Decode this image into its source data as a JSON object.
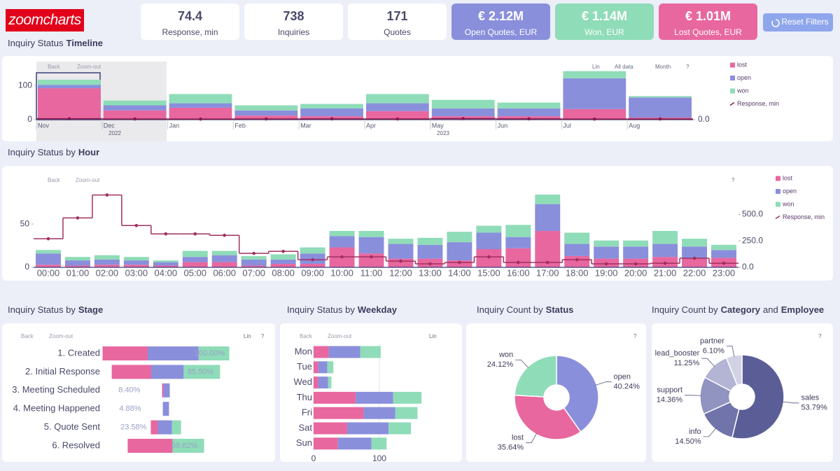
{
  "logo": "zoomcharts",
  "kpis": [
    {
      "value": "74.4",
      "label": "Response, min",
      "color": "#ffffff"
    },
    {
      "value": "738",
      "label": "Inquiries",
      "color": "#ffffff"
    },
    {
      "value": "171",
      "label": "Quotes",
      "color": "#ffffff"
    },
    {
      "value": "€ 2.12M",
      "label": "Open Quotes, EUR",
      "color": "#8a8fdc"
    },
    {
      "value": "€ 1.14M",
      "label": "Won, EUR",
      "color": "#8fdcb8"
    },
    {
      "value": "€ 1.01M",
      "label": "Lost Quotes, EUR",
      "color": "#e8679f"
    }
  ],
  "reset_button": "Reset Filters",
  "chart_data": [
    {
      "type": "bar",
      "title_parts": [
        {
          "text": "Inquiry Status",
          "bold": false
        },
        {
          "text": "Timeline",
          "bold": true
        }
      ],
      "toolbar_left": [
        "Back",
        "Zoom-out"
      ],
      "toolbar_right": [
        "Lin",
        "All data",
        "Month",
        "?"
      ],
      "categories": [
        "Nov",
        "Dec",
        "Jan",
        "Feb",
        "Mar",
        "Apr",
        "May",
        "Jun",
        "Jul",
        "Aug"
      ],
      "years": [
        "2022",
        "2023"
      ],
      "series": [
        {
          "name": "lost",
          "color": "#e8679f",
          "values": [
            92,
            27,
            35,
            12,
            10,
            25,
            10,
            10,
            31,
            6
          ]
        },
        {
          "name": "open",
          "color": "#8a8fdc",
          "values": [
            10,
            15,
            13,
            15,
            23,
            23,
            23,
            23,
            90,
            59
          ]
        },
        {
          "name": "won",
          "color": "#8fdcb8",
          "values": [
            15,
            14,
            27,
            15,
            13,
            27,
            25,
            17,
            21,
            4
          ]
        },
        {
          "name": "Response, min",
          "type": "line",
          "axis": "y2",
          "color": "#8b1a4a",
          "values": [
            8,
            6,
            5,
            6,
            7,
            6,
            9,
            7,
            5,
            6
          ]
        }
      ],
      "ylim": [
        0,
        170
      ],
      "yticks": [
        0,
        100
      ],
      "y2lim": [
        0,
        500
      ],
      "y2ticks": [
        {
          "value": 0,
          "label": "0.0"
        }
      ],
      "legend": "right"
    },
    {
      "type": "bar",
      "title_parts": [
        {
          "text": "Inquiry Status by",
          "bold": false
        },
        {
          "text": "Hour",
          "bold": true
        }
      ],
      "toolbar_left": [
        "Back",
        "Zoom-out"
      ],
      "toolbar_right": [
        "?"
      ],
      "categories": [
        "00:00",
        "01:00",
        "02:00",
        "03:00",
        "04:00",
        "05:00",
        "06:00",
        "07:00",
        "08:00",
        "09:00",
        "10:00",
        "11:00",
        "12:00",
        "13:00",
        "14:00",
        "15:00",
        "16:00",
        "17:00",
        "18:00",
        "19:00",
        "20:00",
        "21:00",
        "22:00",
        "23:00"
      ],
      "series": [
        {
          "name": "lost",
          "color": "#e8679f",
          "values": [
            3,
            2,
            3,
            3,
            2,
            6,
            6,
            2,
            4,
            4,
            23,
            16,
            10,
            10,
            8,
            21,
            22,
            42,
            13,
            10,
            10,
            12,
            10,
            11
          ]
        },
        {
          "name": "open",
          "color": "#8a8fdc",
          "values": [
            13,
            6,
            6,
            5,
            4,
            6,
            8,
            7,
            5,
            12,
            13,
            19,
            17,
            16,
            21,
            19,
            13,
            31,
            14,
            14,
            14,
            15,
            14,
            9
          ]
        },
        {
          "name": "won",
          "color": "#8fdcb8",
          "values": [
            4,
            4,
            5,
            4,
            2,
            7,
            5,
            4,
            6,
            7,
            6,
            7,
            6,
            8,
            12,
            8,
            14,
            11,
            13,
            7,
            7,
            15,
            9,
            6
          ]
        },
        {
          "name": "Response, min",
          "type": "line",
          "axis": "y2",
          "color": "#a0305e",
          "values": [
            270,
            467,
            684,
            395,
            316,
            316,
            303,
            132,
            151,
            72,
            99,
            99,
            59,
            33,
            46,
            99,
            46,
            46,
            72,
            33,
            33,
            39,
            86,
            39
          ]
        }
      ],
      "ylim": [
        0,
        105
      ],
      "yticks": [
        0,
        50
      ],
      "y2lim": [
        0,
        860
      ],
      "y2ticks": [
        {
          "value": 0,
          "label": "0.0"
        },
        {
          "value": 250,
          "label": "250.0"
        },
        {
          "value": 500,
          "label": "500.0"
        }
      ],
      "legend": "right"
    },
    {
      "type": "funnel",
      "title_parts": [
        {
          "text": "Inquiry Status by",
          "bold": false
        },
        {
          "text": "Stage",
          "bold": true
        }
      ],
      "toolbar_left": [
        "Back",
        "Zoom-out"
      ],
      "toolbar_right": [
        "Lin",
        "?"
      ],
      "categories": [
        "1. Created",
        "2. Initial Response",
        "3. Meeting Scheduled",
        "4. Meeting Happened",
        "5. Quote Sent",
        "6. Resolved"
      ],
      "percent_labels": [
        "100.00%",
        "85.50%",
        "8.40%",
        "4.88%",
        "23.58%",
        "59.62%"
      ],
      "series": [
        {
          "name": "lost",
          "color": "#e8679f",
          "values": [
            263,
            230,
            8,
            0,
            41,
            261
          ]
        },
        {
          "name": "open",
          "color": "#8a8fdc",
          "values": [
            297,
            189,
            37,
            36,
            82,
            0
          ]
        },
        {
          "name": "won",
          "color": "#8fdcb8",
          "values": [
            178,
            212,
            0,
            0,
            53,
            184
          ]
        }
      ]
    },
    {
      "type": "bar",
      "horizontal": true,
      "title_parts": [
        {
          "text": "Inquiry Status by",
          "bold": false
        },
        {
          "text": "Weekday",
          "bold": true
        }
      ],
      "toolbar_left": [
        "Back",
        "Zoom-out"
      ],
      "toolbar_right": [
        "Lin"
      ],
      "categories": [
        "Mon",
        "Tue",
        "Wed",
        "Thu",
        "Fri",
        "Sat",
        "Sun"
      ],
      "series": [
        {
          "name": "lost",
          "color": "#e8679f",
          "values": [
            23,
            7,
            7,
            64,
            76,
            51,
            37
          ]
        },
        {
          "name": "open",
          "color": "#8a8fdc",
          "values": [
            48,
            14,
            15,
            57,
            48,
            63,
            51
          ]
        },
        {
          "name": "won",
          "color": "#8fdcb8",
          "values": [
            31,
            9,
            5,
            43,
            34,
            34,
            23
          ]
        }
      ],
      "xlim": [
        0,
        215
      ],
      "xticks": [
        0,
        100
      ],
      "grid": true
    },
    {
      "type": "pie",
      "donut": true,
      "title_parts": [
        {
          "text": "Inquiry Count by",
          "bold": false
        },
        {
          "text": "Status",
          "bold": true
        }
      ],
      "toolbar_right": [
        "?"
      ],
      "categories": [
        "open",
        "lost",
        "won"
      ],
      "values": [
        40.24,
        35.64,
        24.12
      ],
      "value_labels": [
        "40.24%",
        "35.64%",
        "24.12%"
      ],
      "colors": [
        "#8a8fdc",
        "#e8679f",
        "#8fdcb8"
      ]
    },
    {
      "type": "pie",
      "donut": true,
      "title_parts": [
        {
          "text": "Inquiry Count by",
          "bold": false
        },
        {
          "text": "Category",
          "bold": true
        },
        {
          "text": "and",
          "bold": false
        },
        {
          "text": "Employee",
          "bold": true
        }
      ],
      "toolbar_right": [
        "?"
      ],
      "categories": [
        "sales",
        "info",
        "support",
        "lead_booster",
        "partner"
      ],
      "values": [
        53.79,
        14.5,
        14.36,
        11.25,
        6.1
      ],
      "value_labels": [
        "53.79%",
        "14.50%",
        "14.36%",
        "11.25%",
        "6.10%"
      ],
      "colors": [
        "#5b5e96",
        "#7174aa",
        "#9193c0",
        "#b4b5d5",
        "#d2d2e5"
      ]
    }
  ]
}
